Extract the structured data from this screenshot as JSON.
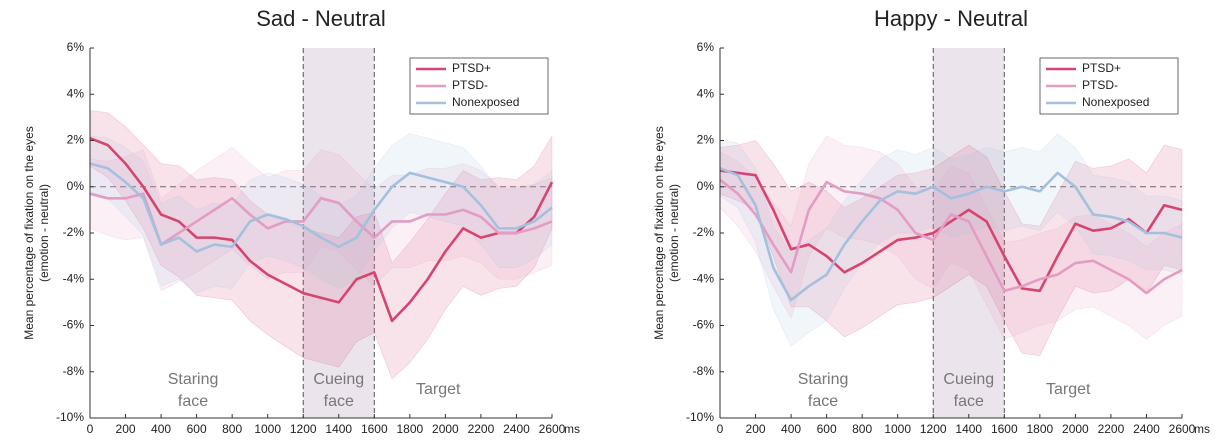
{
  "chart_data": [
    {
      "type": "line",
      "title": "Sad - Neutral",
      "y_label": [
        "Mean percentage of fixation on the eyes",
        "(emotion - neutral)"
      ],
      "x_unit": "ms",
      "x": [
        0,
        100,
        200,
        300,
        400,
        500,
        600,
        700,
        800,
        900,
        1000,
        1100,
        1200,
        1300,
        1400,
        1500,
        1600,
        1700,
        1800,
        1900,
        2000,
        2100,
        2200,
        2300,
        2400,
        2500,
        2600
      ],
      "xlim": [
        0,
        2600
      ],
      "xticks": [
        0,
        200,
        400,
        600,
        800,
        1000,
        1200,
        1400,
        1600,
        1800,
        2000,
        2200,
        2400,
        2600
      ],
      "ylim": [
        -10,
        6
      ],
      "yticks": [
        {
          "value": -10,
          "label": "-10%"
        },
        {
          "value": -8,
          "label": "-8%"
        },
        {
          "value": -6,
          "label": "-6%"
        },
        {
          "value": -4,
          "label": "-4%"
        },
        {
          "value": -2,
          "label": "-2%"
        },
        {
          "value": 0,
          "label": "0%"
        },
        {
          "value": 2,
          "label": "2%"
        },
        {
          "value": 4,
          "label": "4%"
        },
        {
          "value": 6,
          "label": "6%"
        }
      ],
      "shaded_region": [
        1200,
        1600
      ],
      "phases": [
        [
          "Staring",
          "face"
        ],
        [
          "Cueing",
          "face"
        ],
        [
          "Target"
        ]
      ],
      "legend": "upper right",
      "series": [
        {
          "name": "PTSD+",
          "color": "#d6456f",
          "values": [
            2.1,
            1.8,
            1.0,
            0,
            -1.2,
            -1.5,
            -2.2,
            -2.2,
            -2.3,
            -3.2,
            -3.8,
            -4.2,
            -4.6,
            -4.8,
            -5.0,
            -4.0,
            -3.7,
            -5.8,
            -5.0,
            -4.0,
            -2.8,
            -1.8,
            -2.2,
            -2.0,
            -2.0,
            -1.3,
            0.2
          ],
          "error": [
            1.2,
            1.4,
            1.6,
            1.8,
            2.2,
            2.4,
            2.5,
            2.6,
            2.6,
            2.6,
            2.6,
            2.7,
            2.8,
            2.8,
            2.8,
            2.7,
            2.6,
            2.5,
            2.6,
            2.6,
            2.5,
            2.5,
            2.5,
            2.4,
            2.3,
            2.2,
            2.0
          ]
        },
        {
          "name": "PTSD-",
          "color": "#e39cc3",
          "values": [
            -0.3,
            -0.5,
            -0.5,
            -0.3,
            -2.5,
            -2.0,
            -1.5,
            -1.0,
            -0.5,
            -1.2,
            -1.8,
            -1.5,
            -1.5,
            -0.5,
            -0.7,
            -1.5,
            -2.2,
            -1.5,
            -1.5,
            -1.2,
            -1.2,
            -1.0,
            -1.3,
            -2.0,
            -2.0,
            -1.8,
            -1.5
          ],
          "error": [
            1.5,
            1.6,
            1.8,
            1.9,
            2.0,
            2.1,
            2.2,
            2.2,
            2.2,
            2.2,
            2.2,
            2.2,
            2.2,
            2.1,
            2.1,
            2.1,
            2.1,
            2.0,
            2.0,
            2.0,
            2.0,
            2.0,
            2.0,
            2.0,
            2.0,
            1.9,
            1.9
          ]
        },
        {
          "name": "Nonexposed",
          "color": "#a3c1de",
          "values": [
            1.0,
            0.8,
            0.2,
            -0.5,
            -2.5,
            -2.2,
            -2.8,
            -2.5,
            -2.6,
            -1.5,
            -1.2,
            -1.4,
            -1.7,
            -2.2,
            -2.6,
            -2.2,
            -1.0,
            0,
            0.6,
            0.4,
            0.2,
            0.0,
            -0.8,
            -1.8,
            -1.8,
            -1.5,
            -0.9
          ],
          "error": [
            1.2,
            1.3,
            1.5,
            1.6,
            1.8,
            1.8,
            1.8,
            1.8,
            1.8,
            1.8,
            1.8,
            1.8,
            1.8,
            1.8,
            1.8,
            1.8,
            1.8,
            1.8,
            1.7,
            1.7,
            1.7,
            1.7,
            1.7,
            1.7,
            1.7,
            1.6,
            1.6
          ]
        }
      ]
    },
    {
      "type": "line",
      "title": "Happy - Neutral",
      "y_label": [
        "Mean percentage of fixation on the eyes",
        "(emotion - neutral)"
      ],
      "x_unit": "ms",
      "x": [
        0,
        100,
        200,
        300,
        400,
        500,
        600,
        700,
        800,
        900,
        1000,
        1100,
        1200,
        1300,
        1400,
        1500,
        1600,
        1700,
        1800,
        1900,
        2000,
        2100,
        2200,
        2300,
        2400,
        2500,
        2600
      ],
      "xlim": [
        0,
        2600
      ],
      "xticks": [
        0,
        200,
        400,
        600,
        800,
        1000,
        1200,
        1400,
        1600,
        1800,
        2000,
        2200,
        2400,
        2600
      ],
      "ylim": [
        -10,
        6
      ],
      "yticks": [
        {
          "value": -10,
          "label": "-10%"
        },
        {
          "value": -8,
          "label": "-8%"
        },
        {
          "value": -6,
          "label": "-6%"
        },
        {
          "value": -4,
          "label": "-4%"
        },
        {
          "value": -2,
          "label": "-2%"
        },
        {
          "value": 0,
          "label": "0%"
        },
        {
          "value": 2,
          "label": "2%"
        },
        {
          "value": 4,
          "label": "4%"
        },
        {
          "value": 6,
          "label": "6%"
        }
      ],
      "shaded_region": [
        1200,
        1600
      ],
      "phases": [
        [
          "Staring",
          "face"
        ],
        [
          "Cueing",
          "face"
        ],
        [
          "Target"
        ]
      ],
      "legend": "upper right",
      "series": [
        {
          "name": "PTSD+",
          "color": "#d6456f",
          "values": [
            0.7,
            0.6,
            0.5,
            -1.0,
            -2.7,
            -2.5,
            -3.0,
            -3.7,
            -3.3,
            -2.8,
            -2.3,
            -2.2,
            -2.0,
            -1.5,
            -1.0,
            -1.5,
            -3.0,
            -4.4,
            -4.5,
            -3.0,
            -1.6,
            -1.9,
            -1.8,
            -1.4,
            -2.0,
            -0.8,
            -1.0
          ],
          "error": [
            1.0,
            1.2,
            1.5,
            2.0,
            2.5,
            2.7,
            2.8,
            2.8,
            2.8,
            2.8,
            2.8,
            2.8,
            2.8,
            2.8,
            2.8,
            2.8,
            2.8,
            2.8,
            2.8,
            2.7,
            2.7,
            2.7,
            2.7,
            2.6,
            2.6,
            2.6,
            2.6
          ]
        },
        {
          "name": "PTSD-",
          "color": "#e39cc3",
          "values": [
            0.3,
            -0.3,
            -1.2,
            -2.5,
            -3.7,
            -1.0,
            0.2,
            -0.2,
            -0.3,
            -0.5,
            -1.0,
            -2.0,
            -2.3,
            -1.2,
            -1.5,
            -3.0,
            -4.5,
            -4.3,
            -4.0,
            -3.8,
            -3.3,
            -3.2,
            -3.6,
            -4.0,
            -4.6,
            -4.0,
            -3.6
          ],
          "error": [
            1.2,
            1.4,
            1.6,
            1.8,
            2.0,
            2.0,
            2.0,
            2.0,
            2.0,
            2.0,
            2.0,
            2.0,
            2.1,
            2.1,
            2.1,
            2.1,
            2.1,
            2.0,
            2.0,
            2.0,
            2.0,
            2.0,
            2.0,
            2.0,
            2.0,
            2.0,
            2.0
          ]
        },
        {
          "name": "Nonexposed",
          "color": "#a3c1de",
          "values": [
            0.8,
            0.5,
            -0.8,
            -3.5,
            -4.9,
            -4.3,
            -3.8,
            -2.5,
            -1.5,
            -0.6,
            -0.2,
            -0.3,
            0,
            -0.5,
            -0.3,
            0,
            -0.2,
            0,
            -0.2,
            0.6,
            0,
            -1.2,
            -1.3,
            -1.5,
            -2.0,
            -2.0,
            -2.2
          ],
          "error": [
            1.2,
            1.4,
            1.6,
            1.8,
            2.0,
            2.0,
            2.0,
            1.9,
            1.8,
            1.8,
            1.8,
            1.7,
            1.7,
            1.7,
            1.7,
            1.7,
            1.7,
            1.7,
            1.7,
            1.7,
            1.7,
            1.7,
            1.7,
            1.7,
            1.6,
            1.6,
            1.6
          ]
        }
      ]
    }
  ]
}
